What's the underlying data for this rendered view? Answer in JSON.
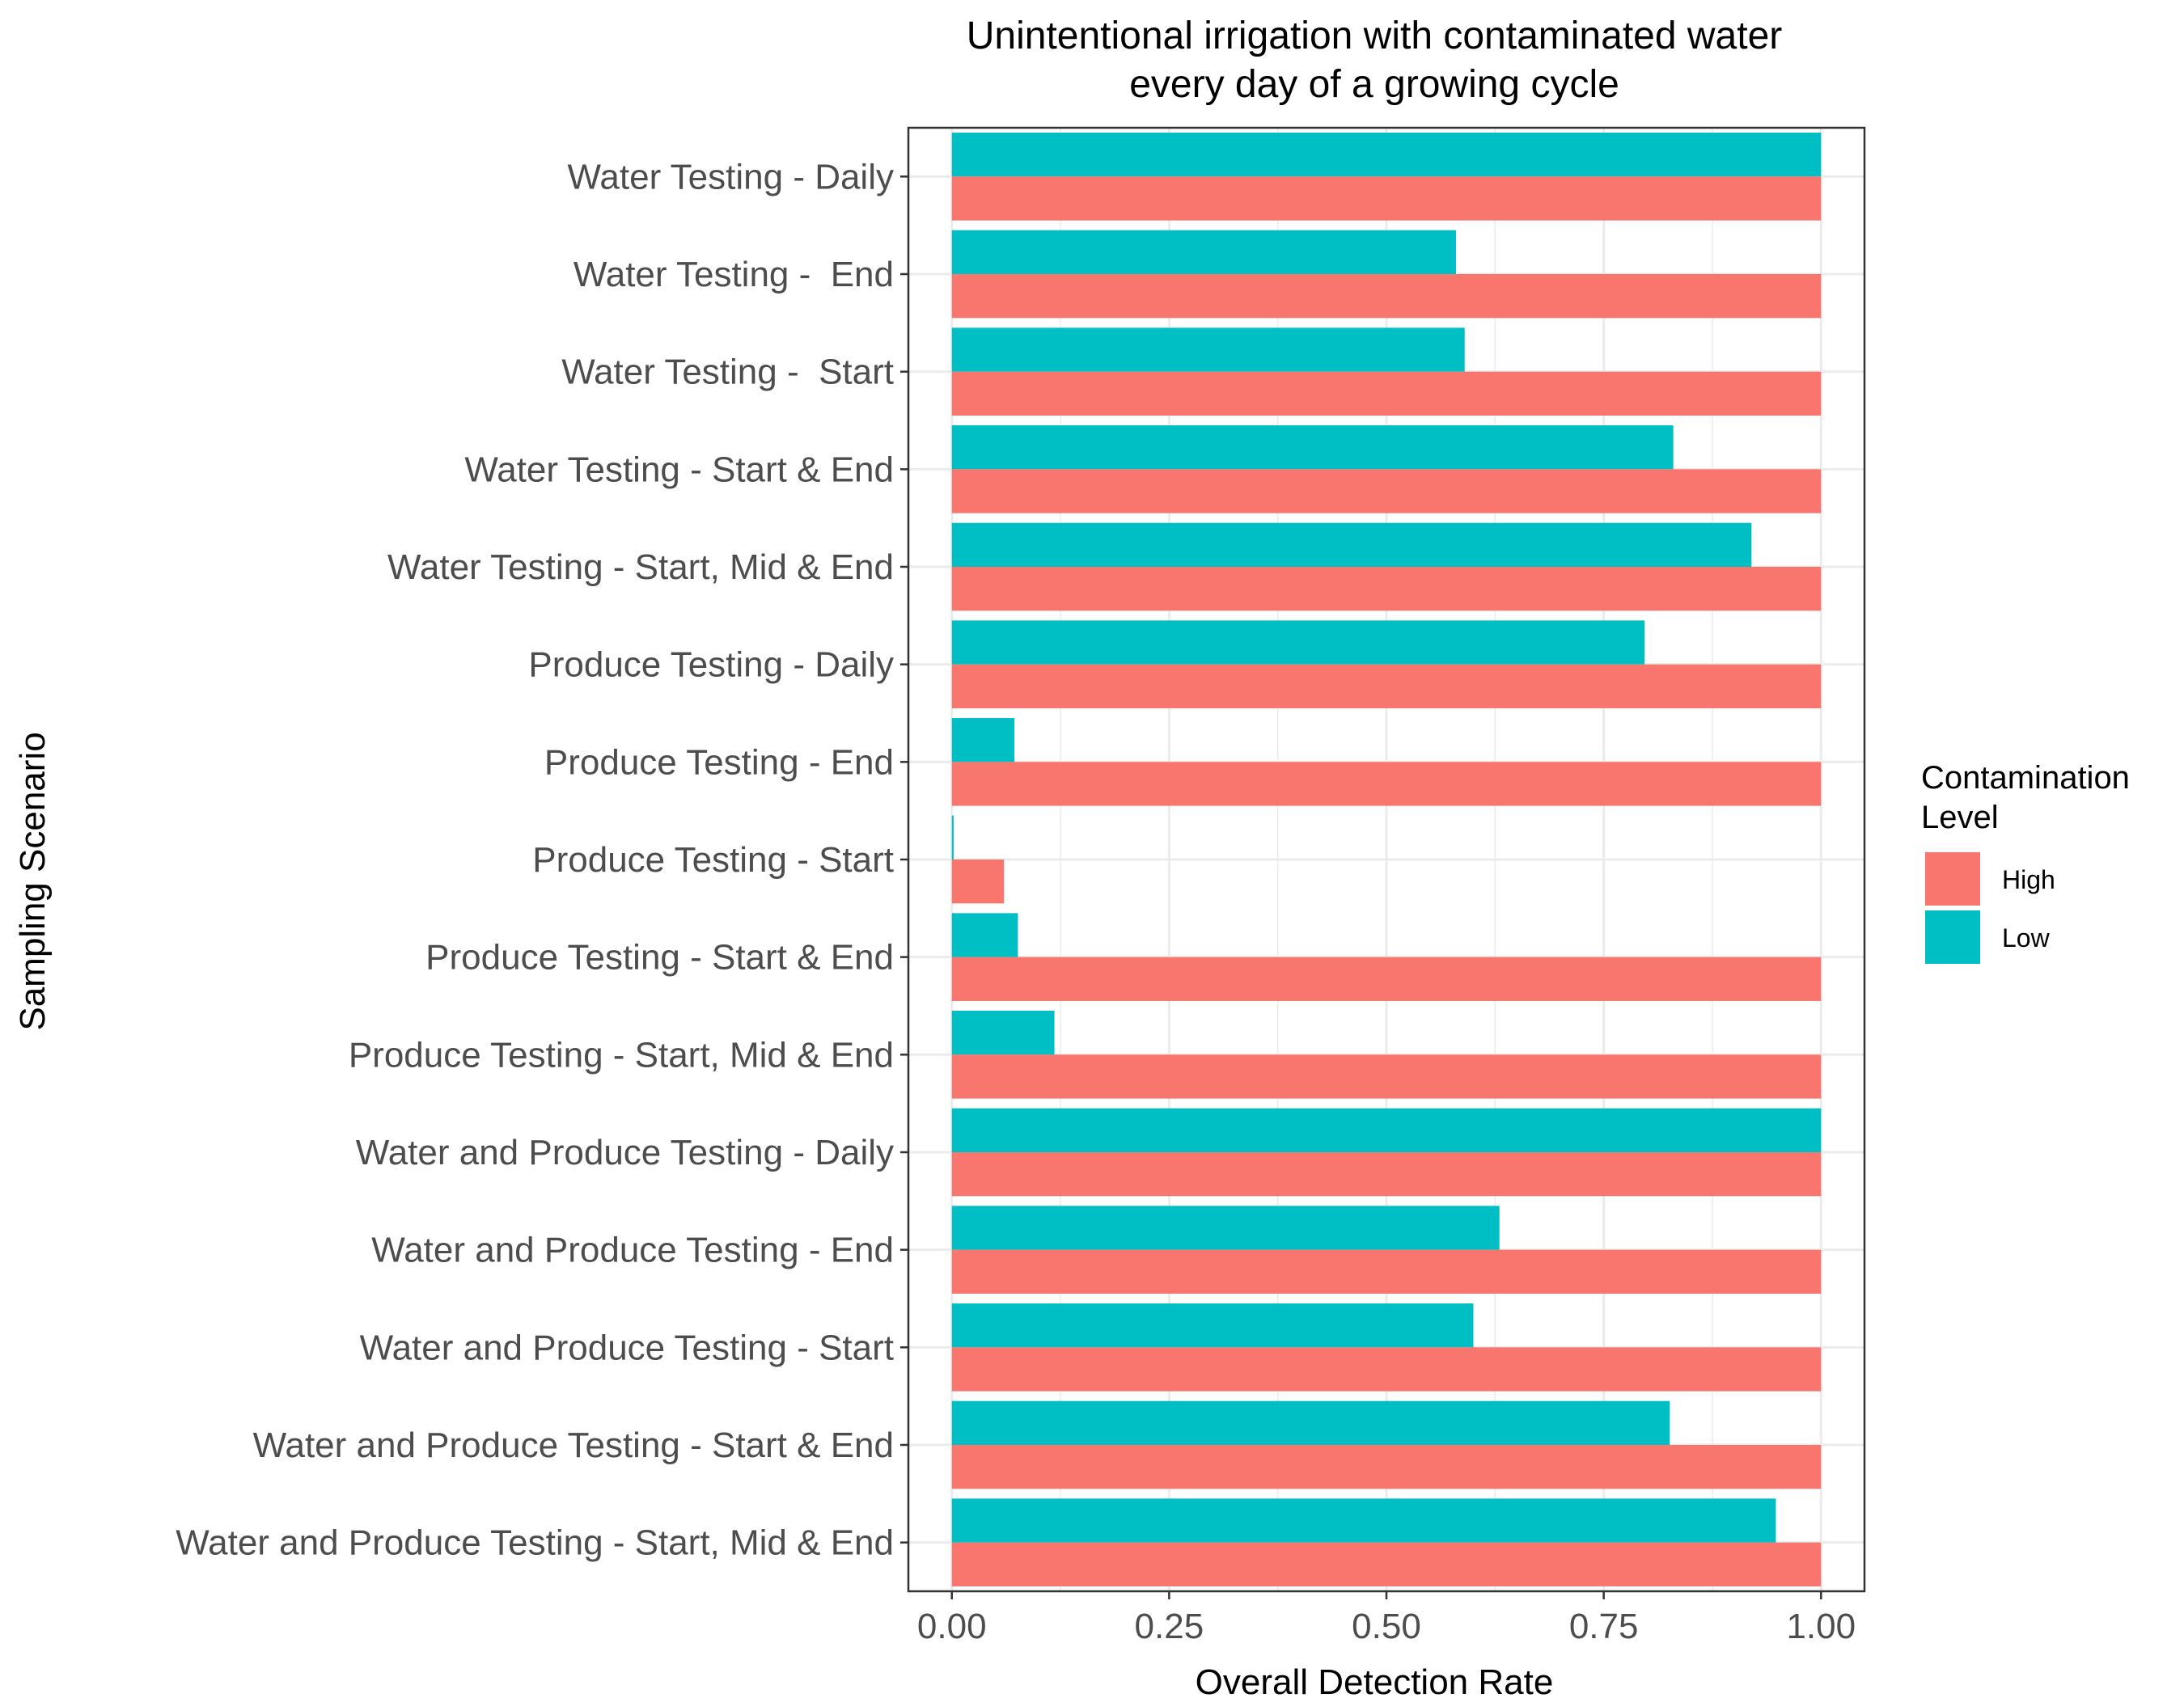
{
  "chart_data": {
    "type": "bar",
    "orientation": "horizontal",
    "title_lines": [
      "Unintentional irrigation with contaminated water",
      "every day of a growing cycle"
    ],
    "xlabel": "Overall Detection Rate",
    "ylabel": "Sampling Scenario",
    "xlim": [
      -0.05,
      1.05
    ],
    "x_ticks": [
      0,
      0.25,
      0.5,
      0.75,
      1
    ],
    "x_tick_labels": [
      "0.00",
      "0.25",
      "0.50",
      "0.75",
      "1.00"
    ],
    "grid": true,
    "categories": [
      "Water Testing - Daily",
      "Water Testing -  End",
      "Water Testing -  Start",
      "Water Testing - Start & End",
      "Water Testing - Start, Mid & End",
      "Produce Testing - Daily",
      "Produce Testing - End",
      "Produce Testing - Start",
      "Produce Testing - Start & End",
      "Produce Testing - Start, Mid & End",
      "Water and Produce Testing - Daily",
      "Water and Produce Testing - End",
      "Water and Produce Testing - Start",
      "Water and Produce Testing - Start & End",
      "Water and Produce Testing - Start, Mid & End"
    ],
    "series": [
      {
        "name": "High",
        "color": "#F8766D",
        "values": [
          1,
          1,
          1,
          1,
          1,
          1,
          1,
          0.06,
          1,
          1,
          1,
          1,
          1,
          1,
          1
        ]
      },
      {
        "name": "Low",
        "color": "#00BFC4",
        "values": [
          1,
          0.58,
          0.59,
          0.83,
          0.92,
          0.797,
          0.072,
          0.002,
          0.076,
          0.118,
          1,
          0.63,
          0.6,
          0.826,
          0.948
        ]
      }
    ],
    "legend": {
      "title_lines": [
        "Contamination",
        "Level"
      ],
      "placement": "right"
    }
  }
}
